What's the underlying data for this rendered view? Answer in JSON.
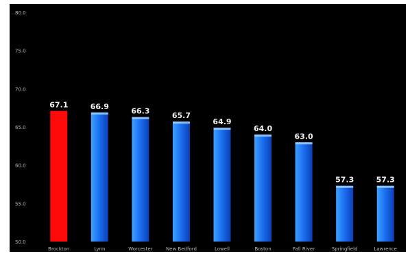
{
  "chart_data": {
    "type": "bar",
    "title": "",
    "xlabel": "",
    "ylabel": "",
    "ylim": [
      50,
      80
    ],
    "yticks": [
      "50.0",
      "55.0",
      "60.0",
      "65.0",
      "70.0",
      "75.0",
      "80.0"
    ],
    "grid": false,
    "categories": [
      "Brockton",
      "Lynn",
      "Worcester",
      "New Bedford",
      "Lowell",
      "Boston",
      "Fall River",
      "Springfield",
      "Lawrence"
    ],
    "values": [
      67.1,
      66.9,
      66.3,
      65.7,
      64.9,
      64.0,
      63.0,
      57.3,
      57.3
    ],
    "value_labels": [
      "67.1",
      "66.9",
      "66.3",
      "65.7",
      "64.9",
      "64.0",
      "63.0",
      "57.3",
      "57.3"
    ],
    "highlight_index": 0,
    "colors": {
      "background": "#000000",
      "highlight_bar": "#ff0a0a",
      "bar_light": "#3ea1ff",
      "bar_mid": "#1c72f2",
      "bar_dark": "#0b3fb8",
      "value_label": "#f2f2f2",
      "axis_text": "#b8b8b8"
    }
  }
}
